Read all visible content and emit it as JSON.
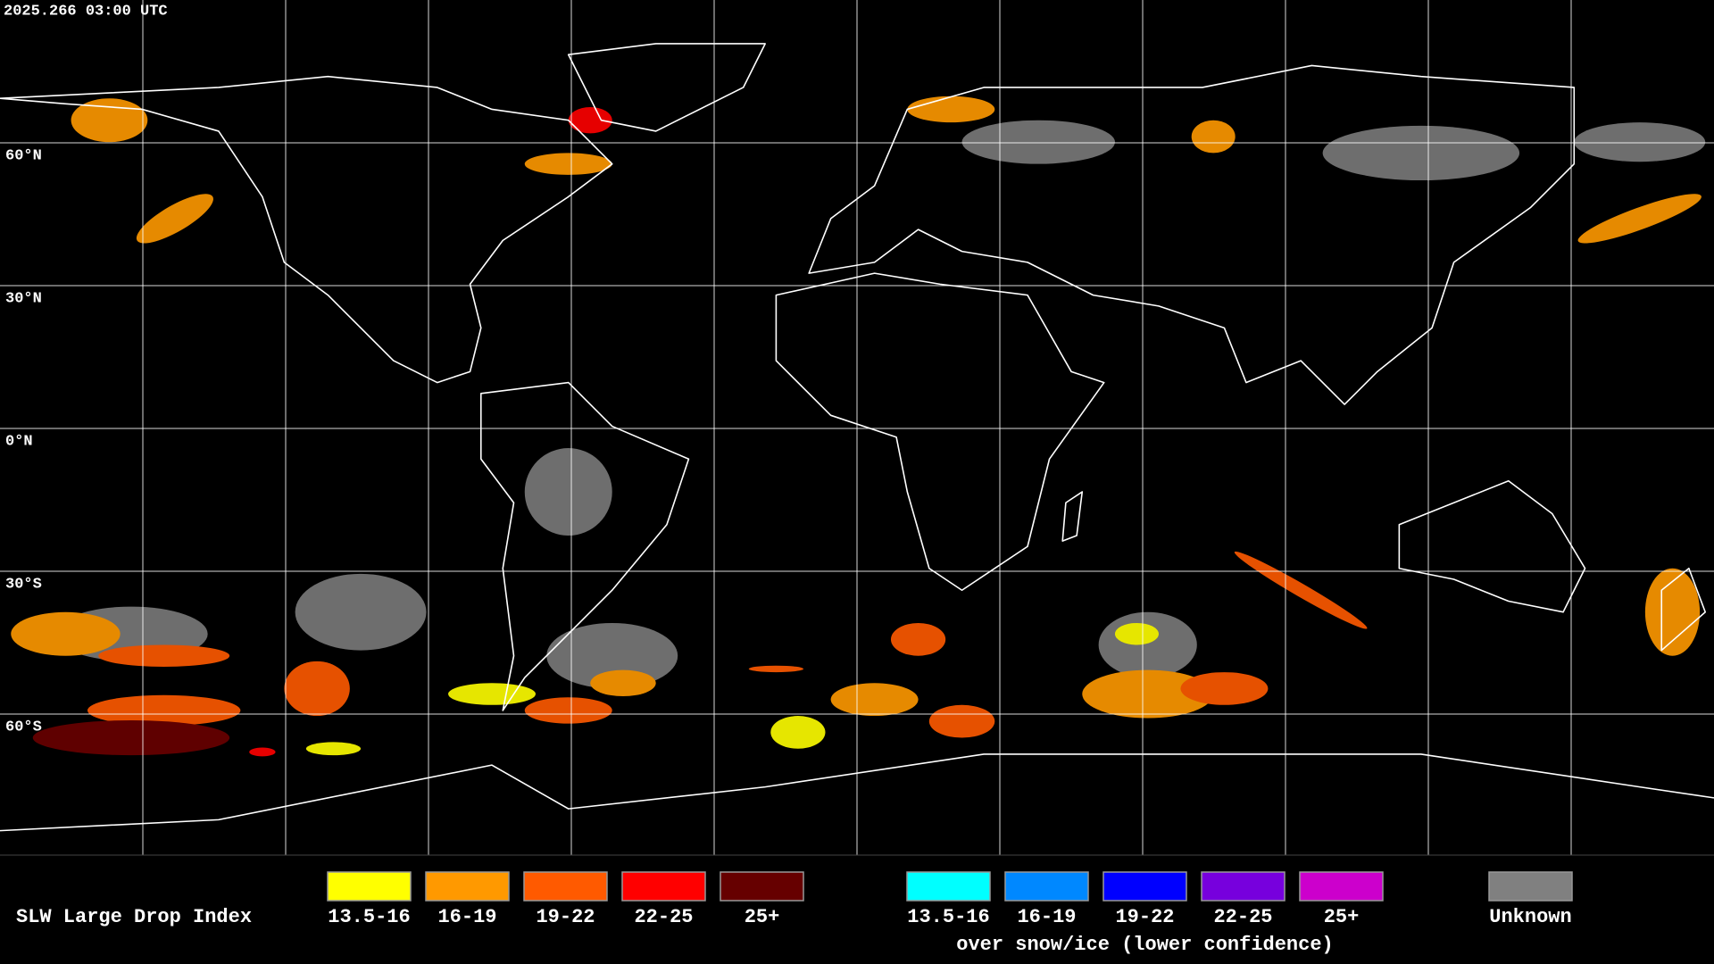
{
  "timestamp": "2025.266 03:00 UTC",
  "latitude_labels": [
    "60°N",
    "30°N",
    "0°N",
    "30°S",
    "60°S"
  ],
  "legend": {
    "title": "SLW Large Drop Index",
    "groups": [
      {
        "items": [
          {
            "label": "13.5-16",
            "color": "#ffff00"
          },
          {
            "label": "16-19",
            "color": "#ff9900"
          },
          {
            "label": "19-22",
            "color": "#ff5a00"
          },
          {
            "label": "22-25",
            "color": "#ff0000"
          },
          {
            "label": "25+",
            "color": "#660000"
          }
        ]
      },
      {
        "items": [
          {
            "label": "13.5-16",
            "color": "#00ffff"
          },
          {
            "label": "16-19",
            "color": "#0088ff"
          },
          {
            "label": "19-22",
            "color": "#0000ff"
          },
          {
            "label": "22-25",
            "color": "#7700dd"
          },
          {
            "label": "25+",
            "color": "#cc00cc"
          }
        ],
        "note": "over snow/ice (lower confidence)"
      },
      {
        "items": [
          {
            "label": "Unknown",
            "color": "#808080"
          }
        ]
      }
    ]
  }
}
